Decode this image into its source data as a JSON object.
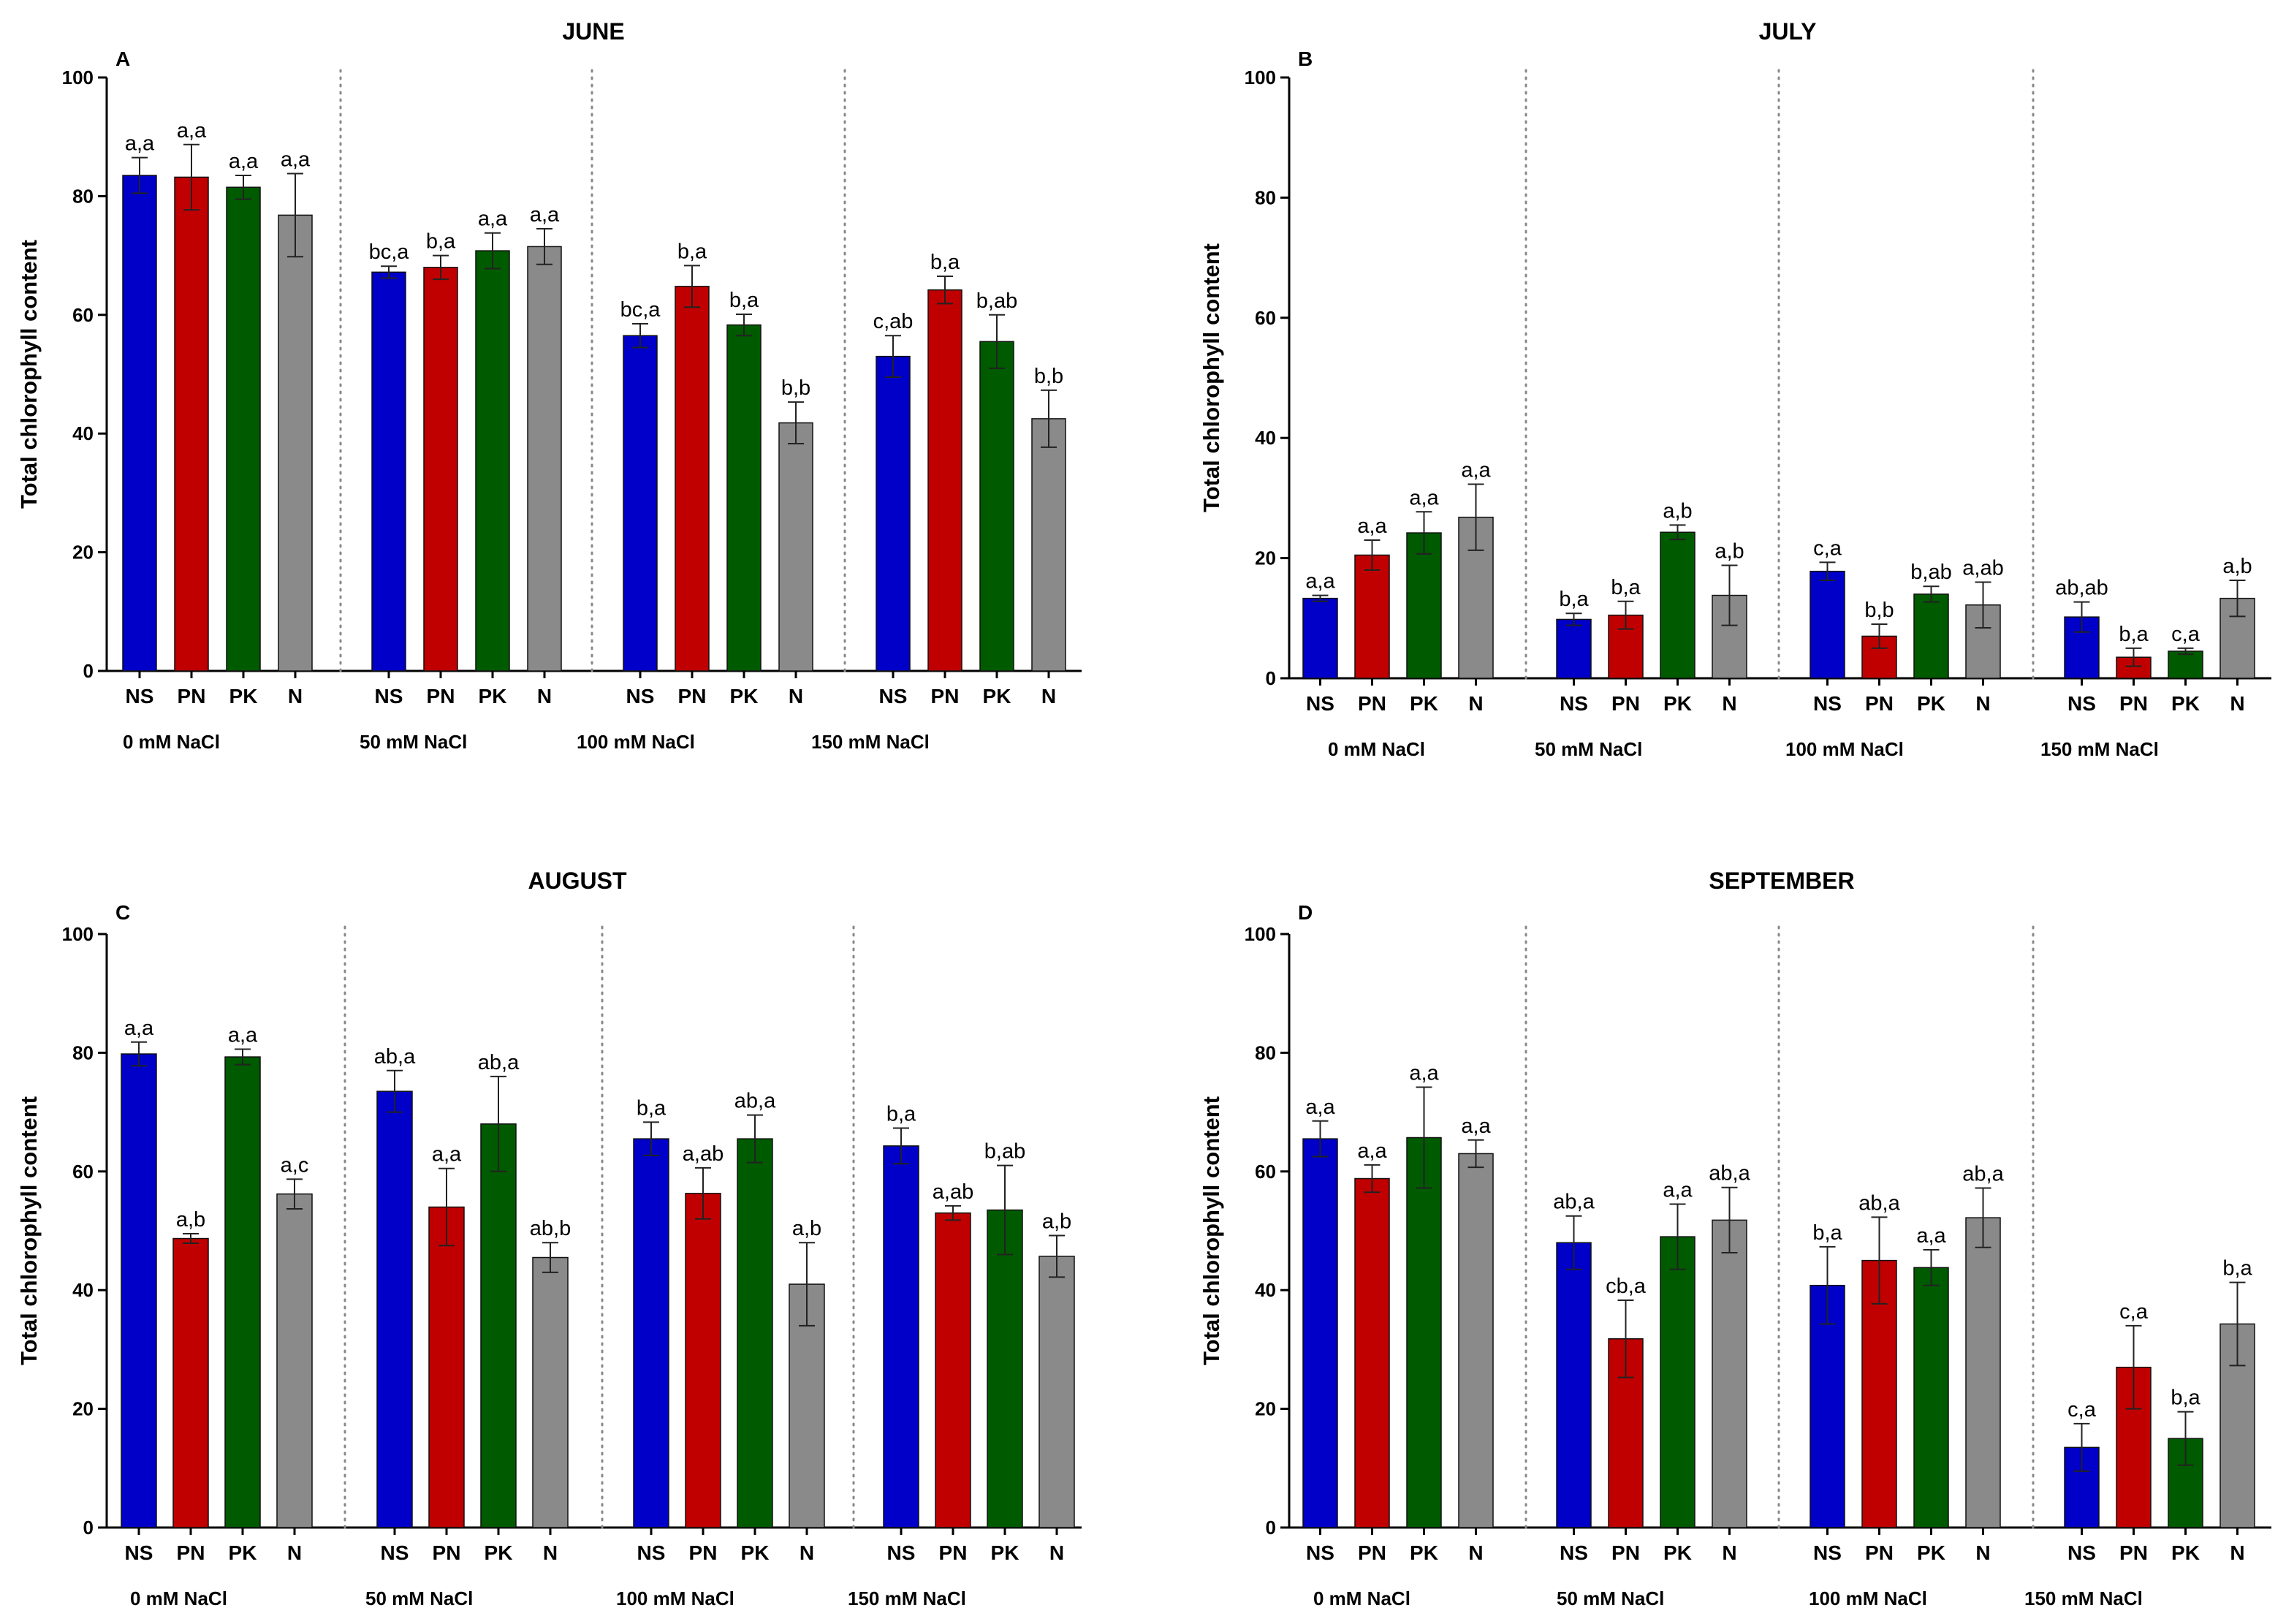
{
  "colors": {
    "NS": "#0000c8",
    "PN": "#c00000",
    "PK": "#005a00",
    "N": "#8a8a8a"
  },
  "chart_data": [
    {
      "type": "bar",
      "letter": "A",
      "title": "JUNE",
      "ylabel": "Total chlorophyll content",
      "ylim": [
        0,
        100
      ],
      "yticks": [
        0,
        20,
        40,
        60,
        80,
        100
      ],
      "categories": [
        "NS",
        "PN",
        "PK",
        "N"
      ],
      "groups": [
        {
          "label": "0 mM NaCl",
          "values": [
            83.5,
            83.2,
            81.5,
            76.8
          ],
          "errors": [
            3.0,
            5.5,
            2.0,
            7.0
          ],
          "labels": [
            "a,a",
            "a,a",
            "a,a",
            "a,a"
          ]
        },
        {
          "label": "50 mM NaCl",
          "values": [
            67.2,
            68.0,
            70.8,
            71.5
          ],
          "errors": [
            1.0,
            2.0,
            3.0,
            3.0
          ],
          "labels": [
            "bc,a",
            "b,a",
            "a,a",
            "a,a"
          ]
        },
        {
          "label": "100 mM NaCl",
          "values": [
            56.5,
            64.8,
            58.3,
            41.8
          ],
          "errors": [
            2.0,
            3.5,
            1.8,
            3.5
          ],
          "labels": [
            "bc,a",
            "b,a",
            "b,a",
            "b,b"
          ]
        },
        {
          "label": "150 mM NaCl",
          "values": [
            53.0,
            64.2,
            55.5,
            42.5
          ],
          "errors": [
            3.5,
            2.3,
            4.5,
            4.8
          ],
          "labels": [
            "c,ab",
            "b,a",
            "b,ab",
            "b,b"
          ]
        }
      ]
    },
    {
      "type": "bar",
      "letter": "B",
      "title": "JULY",
      "ylabel": "Total chlorophyll content",
      "ylim": [
        0,
        100
      ],
      "yticks": [
        0,
        20,
        40,
        60,
        80,
        100
      ],
      "categories": [
        "NS",
        "PN",
        "PK",
        "N"
      ],
      "groups": [
        {
          "label": "0 mM NaCl",
          "values": [
            13.3,
            20.5,
            24.2,
            26.8
          ],
          "errors": [
            0.5,
            2.5,
            3.5,
            5.5
          ],
          "labels": [
            "a,a",
            "a,a",
            "a,a",
            "a,a"
          ]
        },
        {
          "label": "50 mM NaCl",
          "values": [
            9.8,
            10.5,
            24.3,
            13.8
          ],
          "errors": [
            1.0,
            2.3,
            1.2,
            5.0
          ],
          "labels": [
            "b,a",
            "b,a",
            "a,b",
            "a,b"
          ]
        },
        {
          "label": "100 mM NaCl",
          "values": [
            17.8,
            7.0,
            14.0,
            12.2
          ],
          "errors": [
            1.5,
            2.0,
            1.3,
            3.8
          ],
          "labels": [
            "c,a",
            "b,b",
            "b,ab",
            "a,ab"
          ]
        },
        {
          "label": "150 mM NaCl",
          "values": [
            10.2,
            3.5,
            4.5,
            13.3
          ],
          "errors": [
            2.5,
            1.5,
            0.5,
            3.0
          ],
          "labels": [
            "ab,ab",
            "b,a",
            "c,a",
            "a,b"
          ]
        }
      ]
    },
    {
      "type": "bar",
      "letter": "C",
      "title": "AUGUST",
      "ylabel": "Total chlorophyll content",
      "ylim": [
        0,
        100
      ],
      "yticks": [
        0,
        20,
        40,
        60,
        80,
        100
      ],
      "categories": [
        "NS",
        "PN",
        "PK",
        "N"
      ],
      "groups": [
        {
          "label": "0 mM NaCl",
          "values": [
            79.8,
            48.7,
            79.3,
            56.2
          ],
          "errors": [
            2.0,
            0.8,
            1.3,
            2.5
          ],
          "labels": [
            "a,a",
            "a,b",
            "a,a",
            "a,c"
          ]
        },
        {
          "label": "50 mM NaCl",
          "values": [
            73.5,
            54.0,
            68.0,
            45.5
          ],
          "errors": [
            3.5,
            6.5,
            8.0,
            2.5
          ],
          "labels": [
            "ab,a",
            "a,a",
            "ab,a",
            "ab,b"
          ]
        },
        {
          "label": "100 mM NaCl",
          "values": [
            65.5,
            56.3,
            65.5,
            41.0
          ],
          "errors": [
            2.8,
            4.3,
            4.0,
            7.0
          ],
          "labels": [
            "b,a",
            "a,ab",
            "ab,a",
            "a,b"
          ]
        },
        {
          "label": "150 mM NaCl",
          "values": [
            64.3,
            53.0,
            53.5,
            45.7
          ],
          "errors": [
            3.0,
            1.2,
            7.5,
            3.5
          ],
          "labels": [
            "b,a",
            "a,ab",
            "b,ab",
            "a,b"
          ]
        }
      ]
    },
    {
      "type": "bar",
      "letter": "D",
      "title": "SEPTEMBER",
      "ylabel": "Total chlorophyll content",
      "ylim": [
        0,
        100
      ],
      "yticks": [
        0,
        20,
        40,
        60,
        80,
        100
      ],
      "categories": [
        "NS",
        "PN",
        "PK",
        "N"
      ],
      "groups": [
        {
          "label": "0 mM NaCl",
          "values": [
            65.5,
            58.8,
            65.7,
            63.0
          ],
          "errors": [
            3.0,
            2.3,
            8.5,
            2.3
          ],
          "labels": [
            "a,a",
            "a,a",
            "a,a",
            "a,a"
          ]
        },
        {
          "label": "50 mM NaCl",
          "values": [
            48.0,
            31.8,
            49.0,
            51.8
          ],
          "errors": [
            4.5,
            6.5,
            5.5,
            5.5
          ],
          "labels": [
            "ab,a",
            "cb,a",
            "a,a",
            "ab,a"
          ]
        },
        {
          "label": "100 mM NaCl",
          "values": [
            40.8,
            45.0,
            43.8,
            52.2
          ],
          "errors": [
            6.5,
            7.3,
            3.0,
            5.0
          ],
          "labels": [
            "b,a",
            "ab,a",
            "a,a",
            "ab,a"
          ]
        },
        {
          "label": "150 mM NaCl",
          "values": [
            13.5,
            27.0,
            15.0,
            34.3
          ],
          "errors": [
            4.0,
            7.0,
            4.5,
            7.0
          ],
          "labels": [
            "c,a",
            "c,a",
            "b,a",
            "b,a"
          ]
        }
      ]
    }
  ]
}
